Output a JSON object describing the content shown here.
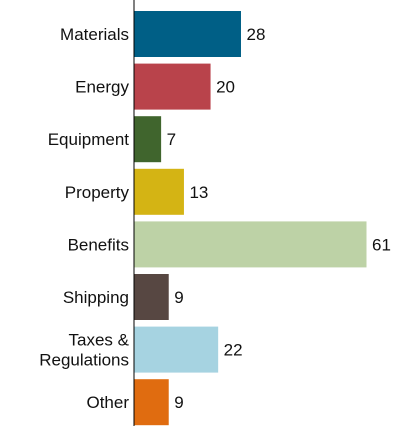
{
  "chart_data": {
    "type": "bar",
    "orientation": "horizontal",
    "categories": [
      "Materials",
      "Energy",
      "Equipment",
      "Property",
      "Benefits",
      "Shipping",
      "Taxes &\nRegulations",
      "Other"
    ],
    "values": [
      28,
      20,
      7,
      13,
      61,
      9,
      22,
      9
    ],
    "colors": [
      "#005f86",
      "#b9434b",
      "#40652d",
      "#d4b414",
      "#bdd2a6",
      "#574742",
      "#a6d3e1",
      "#e06c10"
    ],
    "data_labels": true,
    "title": "",
    "xlabel": "",
    "ylabel": "",
    "xlim": [
      0,
      61
    ],
    "grid": false
  }
}
